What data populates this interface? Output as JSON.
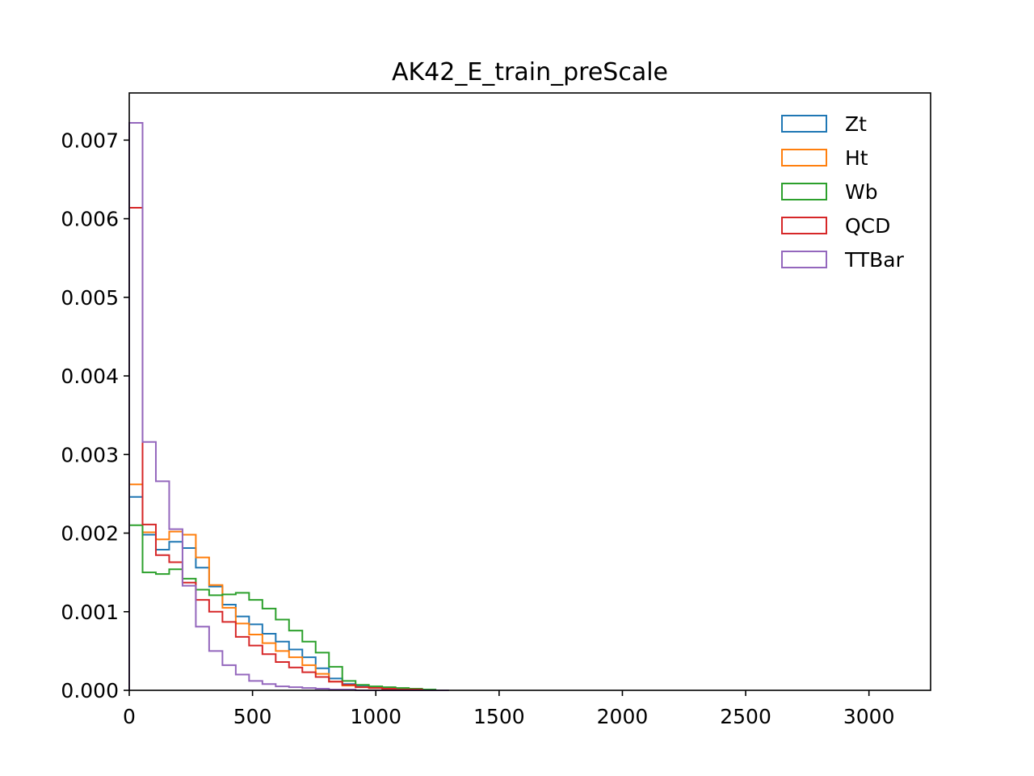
{
  "chart_data": {
    "type": "histogram-step",
    "title": "AK42_E_train_preScale",
    "xlabel": "",
    "ylabel": "",
    "xlim": [
      0,
      3250
    ],
    "ylim": [
      0,
      0.0076
    ],
    "x_ticks": [
      0,
      500,
      1000,
      1500,
      2000,
      2500,
      3000
    ],
    "x_tick_labels": [
      "0",
      "500",
      "1000",
      "1500",
      "2000",
      "2500",
      "3000"
    ],
    "y_ticks": [
      0,
      0.001,
      0.002,
      0.003,
      0.004,
      0.005,
      0.006,
      0.007
    ],
    "y_tick_labels": [
      "0.000",
      "0.001",
      "0.002",
      "0.003",
      "0.004",
      "0.005",
      "0.006",
      "0.007"
    ],
    "grid": false,
    "legend_position": "top-right",
    "bin_width": 54,
    "bin_starts": [
      0,
      54,
      108,
      162,
      216,
      270,
      324,
      378,
      432,
      486,
      540,
      594,
      648,
      702,
      756,
      810,
      864,
      918,
      972,
      1026,
      1080,
      1134,
      1188,
      1242
    ],
    "series": [
      {
        "name": "Zt",
        "color": "#1f77b4",
        "values": [
          0.00246,
          0.00198,
          0.00179,
          0.00189,
          0.00181,
          0.00156,
          0.00132,
          0.00109,
          0.00094,
          0.00084,
          0.00072,
          0.00062,
          0.00052,
          0.00042,
          0.00028,
          0.00015,
          8e-05,
          5e-05,
          4e-05,
          3e-05,
          2e-05,
          1e-05,
          1e-05,
          0.0
        ]
      },
      {
        "name": "Ht",
        "color": "#ff7f0e",
        "values": [
          0.00262,
          0.00201,
          0.00192,
          0.00202,
          0.00198,
          0.00169,
          0.00134,
          0.00105,
          0.00085,
          0.00071,
          0.0006,
          0.0005,
          0.00042,
          0.00032,
          0.00021,
          0.00011,
          6e-05,
          4e-05,
          3e-05,
          2e-05,
          1e-05,
          1e-05,
          0.0,
          0.0
        ]
      },
      {
        "name": "Wb",
        "color": "#2ca02c",
        "values": [
          0.0021,
          0.0015,
          0.00148,
          0.00154,
          0.00142,
          0.00128,
          0.00121,
          0.00122,
          0.00124,
          0.00115,
          0.00104,
          0.0009,
          0.00076,
          0.00062,
          0.00048,
          0.0003,
          0.00012,
          7e-05,
          5e-05,
          4e-05,
          3e-05,
          2e-05,
          1e-05,
          0.0
        ]
      },
      {
        "name": "QCD",
        "color": "#d62728",
        "values": [
          0.00614,
          0.00211,
          0.00172,
          0.00163,
          0.00137,
          0.00115,
          0.001,
          0.00087,
          0.00068,
          0.00057,
          0.00046,
          0.00036,
          0.00029,
          0.00023,
          0.00017,
          0.00011,
          7e-05,
          4e-05,
          3e-05,
          2e-05,
          1e-05,
          1e-05,
          0.0,
          0.0
        ]
      },
      {
        "name": "TTBar",
        "color": "#9467bd",
        "values": [
          0.00722,
          0.00316,
          0.00266,
          0.00205,
          0.00133,
          0.00081,
          0.0005,
          0.00032,
          0.0002,
          0.00012,
          8e-05,
          5e-05,
          4e-05,
          3e-05,
          2e-05,
          1e-05,
          1e-05,
          0.0,
          0.0,
          0.0,
          0.0,
          0.0,
          0.0,
          0.0
        ]
      }
    ]
  }
}
